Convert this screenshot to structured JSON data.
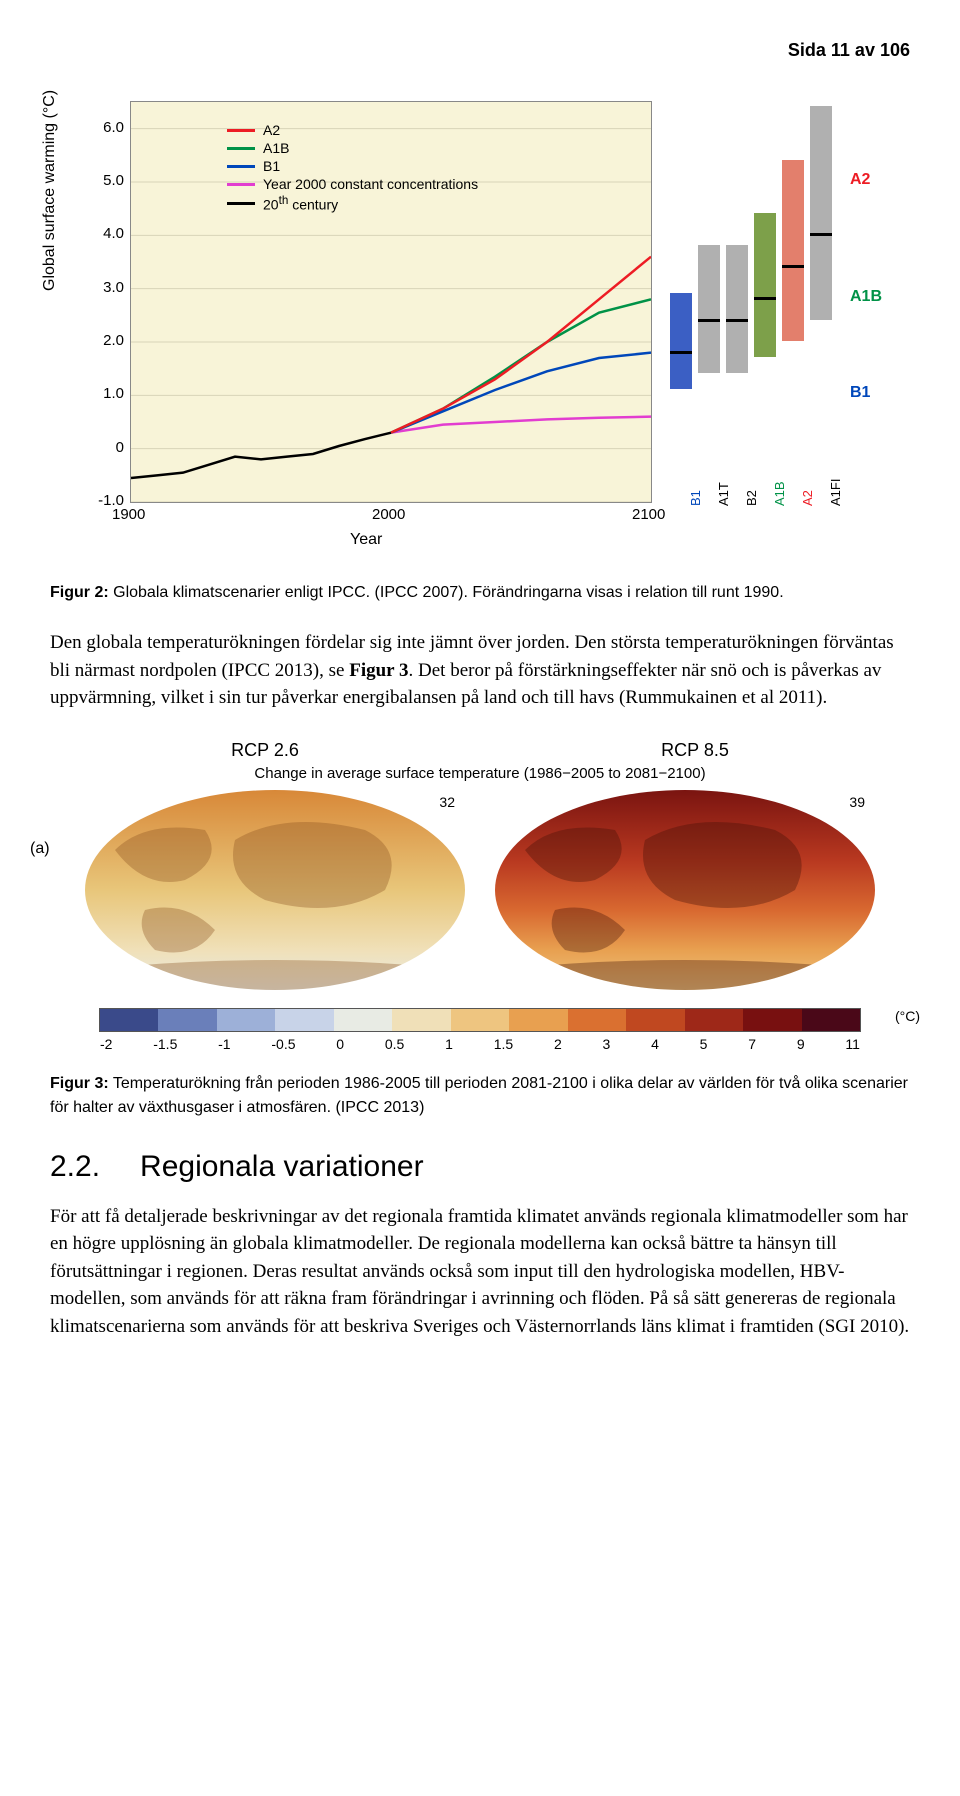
{
  "page_header": "Sida 11 av 106",
  "chart1": {
    "type": "line",
    "bg_color": "#f8f4d8",
    "ylabel": "Global surface warming (°C)",
    "xlabel": "Year",
    "xlim": [
      1900,
      2100
    ],
    "ylim": [
      -1.0,
      6.5
    ],
    "yticks": [
      "-1.0",
      "0",
      "1.0",
      "2.0",
      "3.0",
      "4.0",
      "5.0",
      "6.0"
    ],
    "xticks": [
      "1900",
      "2000",
      "2100"
    ],
    "legend": [
      {
        "label": "A2",
        "color": "#ed1c24"
      },
      {
        "label": "A1B",
        "color": "#009247"
      },
      {
        "label": "B1",
        "color": "#0047ba"
      },
      {
        "label": "Year 2000 constant concentrations",
        "color": "#e23dd0"
      },
      {
        "label": "20th century",
        "color": "#000000"
      }
    ],
    "series": {
      "twentieth": {
        "color": "#000000",
        "points": [
          [
            1900,
            -0.55
          ],
          [
            1910,
            -0.5
          ],
          [
            1920,
            -0.45
          ],
          [
            1930,
            -0.3
          ],
          [
            1940,
            -0.15
          ],
          [
            1950,
            -0.2
          ],
          [
            1960,
            -0.15
          ],
          [
            1970,
            -0.1
          ],
          [
            1980,
            0.05
          ],
          [
            1990,
            0.18
          ],
          [
            2000,
            0.3
          ]
        ]
      },
      "constant": {
        "color": "#e23dd0",
        "points": [
          [
            2000,
            0.3
          ],
          [
            2020,
            0.45
          ],
          [
            2040,
            0.5
          ],
          [
            2060,
            0.55
          ],
          [
            2080,
            0.58
          ],
          [
            2100,
            0.6
          ]
        ]
      },
      "b1": {
        "color": "#0047ba",
        "points": [
          [
            2000,
            0.3
          ],
          [
            2020,
            0.7
          ],
          [
            2040,
            1.1
          ],
          [
            2060,
            1.45
          ],
          [
            2080,
            1.7
          ],
          [
            2100,
            1.8
          ]
        ]
      },
      "a1b": {
        "color": "#009247",
        "points": [
          [
            2000,
            0.3
          ],
          [
            2020,
            0.75
          ],
          [
            2040,
            1.35
          ],
          [
            2060,
            2.0
          ],
          [
            2080,
            2.55
          ],
          [
            2100,
            2.8
          ]
        ]
      },
      "a2": {
        "color": "#ed1c24",
        "points": [
          [
            2000,
            0.3
          ],
          [
            2020,
            0.75
          ],
          [
            2040,
            1.3
          ],
          [
            2060,
            2.0
          ],
          [
            2080,
            2.8
          ],
          [
            2100,
            3.6
          ]
        ]
      }
    },
    "bars": [
      {
        "label": "B1",
        "color": "#3b5fc4",
        "low": 1.1,
        "high": 2.9,
        "median": 1.8
      },
      {
        "label": "A1T",
        "color": "#b0b0b0",
        "low": 1.4,
        "high": 3.8,
        "median": 2.4
      },
      {
        "label": "B2",
        "color": "#b0b0b0",
        "low": 1.4,
        "high": 3.8,
        "median": 2.4
      },
      {
        "label": "A1B",
        "color": "#7da04a",
        "low": 1.7,
        "high": 4.4,
        "median": 2.8
      },
      {
        "label": "A2",
        "color": "#e37f6c",
        "low": 2.0,
        "high": 5.4,
        "median": 3.4
      },
      {
        "label": "A1FI",
        "color": "#b0b0b0",
        "low": 2.4,
        "high": 6.4,
        "median": 4.0
      }
    ],
    "side_labels": [
      {
        "text": "A2",
        "color": "#ed1c24",
        "y": 5.0
      },
      {
        "text": "A1B",
        "color": "#009247",
        "y": 2.8
      },
      {
        "text": "B1",
        "color": "#0047ba",
        "y": 1.0
      }
    ],
    "bar_label_colors": [
      "#0047ba",
      "#000000",
      "#000000",
      "#009247",
      "#ed1c24",
      "#000000"
    ]
  },
  "caption2": {
    "lead": "Figur 2:",
    "text": " Globala klimatscenarier enligt IPCC. (IPCC 2007). Förändringarna visas i relation till runt 1990."
  },
  "para1_a": "Den globala temperaturökningen fördelar sig inte jämnt över jorden. Den största temperaturökningen förväntas bli närmast nordpolen (IPCC 2013), se ",
  "para1_b": "Figur 3",
  "para1_c": ". Det beror på förstärkningseffekter när snö och is påverkas av uppvärmning, vilket i sin tur påverkar energibalansen på land och till havs (Rummukainen et al 2011).",
  "fig3": {
    "panel_label": "(a)",
    "title_left": "RCP 2.6",
    "title_right": "RCP 8.5",
    "subtitle": "Change in average surface temperature (1986−2005 to 2081−2100)",
    "count_left": "32",
    "count_right": "39",
    "unit": "(°C)",
    "colorbar_colors": [
      "#3a4a8a",
      "#6a7fba",
      "#9db0d8",
      "#c8d3e8",
      "#e8ebe4",
      "#f0e0b8",
      "#eec580",
      "#e8a050",
      "#da7030",
      "#c04820",
      "#9e2818",
      "#781010",
      "#4a0818"
    ],
    "colorbar_ticks": [
      "-2",
      "-1.5",
      "-1",
      "-0.5",
      "0",
      "0.5",
      "1",
      "1.5",
      "2",
      "3",
      "4",
      "5",
      "7",
      "9",
      "11"
    ],
    "globe_left_bg": "linear-gradient(180deg,#d88838 0%,#e8c67a 50%,#f0e0b8 80%,#e8ebe4 100%)",
    "globe_right_bg": "linear-gradient(180deg,#7a1410 0%,#b83820 35%,#d86830 60%,#e8a050 80%,#eec580 100%)"
  },
  "caption3": {
    "lead": "Figur 3:",
    "text": " Temperaturökning från perioden 1986-2005 till perioden 2081-2100 i olika delar av världen för två olika scenarier för halter av växthusgaser i atmosfären. (IPCC 2013)"
  },
  "section": {
    "num": "2.2.",
    "title": "Regionala variationer"
  },
  "para2": "För att få detaljerade beskrivningar av det regionala framtida klimatet används regionala klimatmodeller som har en högre upplösning än globala klimatmodeller. De regionala modellerna kan också bättre ta hänsyn till förutsättningar i regionen. Deras resultat används också som input till den hydrologiska modellen, HBV-modellen, som används för att räkna fram förändringar i avrinning och flöden. På så sätt genereras de regionala klimatscenarierna som används för att beskriva Sveriges och Västernorrlands läns klimat i framtiden (SGI 2010)."
}
